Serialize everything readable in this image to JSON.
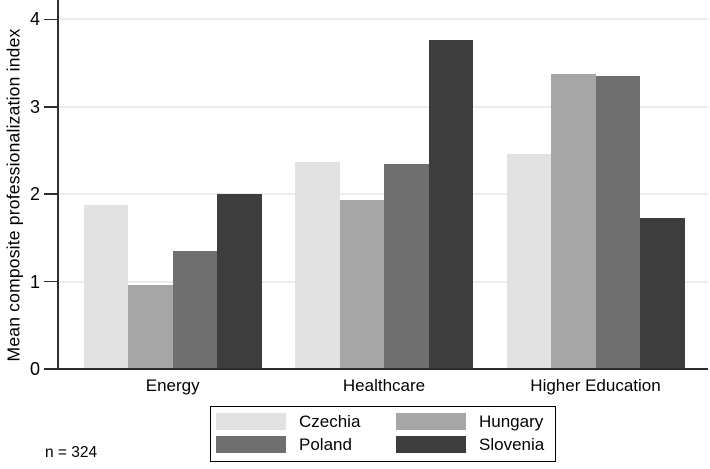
{
  "note": "n = 324",
  "chart_data": {
    "type": "bar",
    "title": "",
    "xlabel": "",
    "ylabel": "Mean composite professionalization index",
    "ylim": [
      0,
      4
    ],
    "yticks": [
      0,
      1,
      2,
      3,
      4
    ],
    "grid": "horizontal",
    "legend_position": "bottom",
    "annotation": "n = 324",
    "categories": [
      "Energy",
      "Healthcare",
      "Higher Education"
    ],
    "series": [
      {
        "name": "Czechia",
        "color": "#e2e2e2",
        "values": [
          1.88,
          2.37,
          2.46
        ]
      },
      {
        "name": "Hungary",
        "color": "#a6a6a6",
        "values": [
          0.96,
          1.93,
          3.37
        ]
      },
      {
        "name": "Poland",
        "color": "#6f6f6f",
        "values": [
          1.35,
          2.35,
          3.35
        ]
      },
      {
        "name": "Slovenia",
        "color": "#3d3d3d",
        "values": [
          2.0,
          3.76,
          1.73
        ]
      }
    ]
  }
}
